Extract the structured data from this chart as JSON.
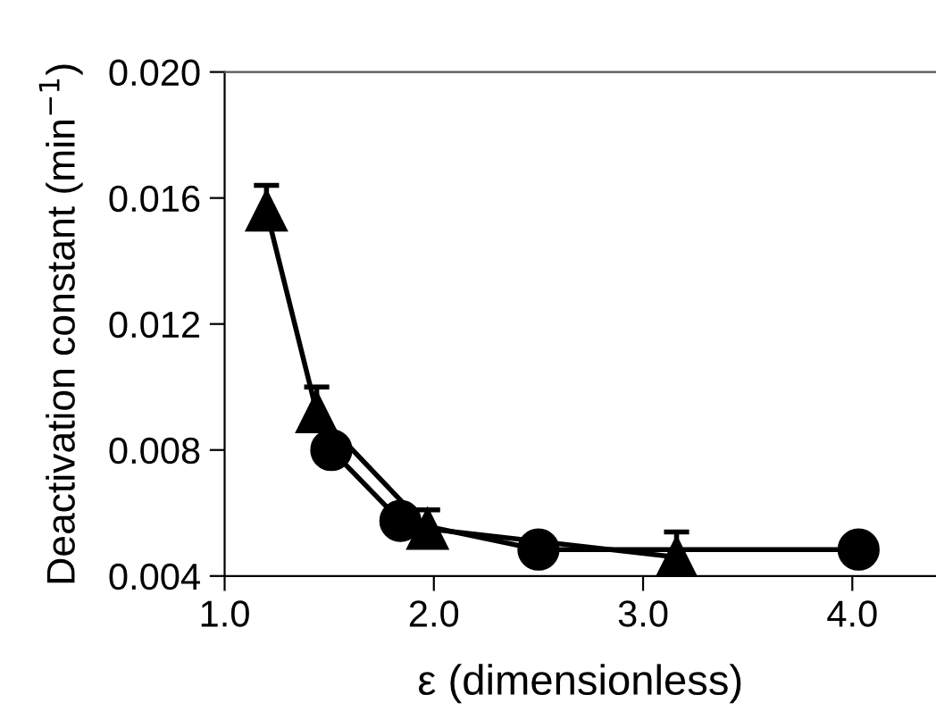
{
  "chart_data": {
    "type": "line",
    "xlabel": "ε (dimensionless)",
    "ylabel": "Deactivation constant (min$^{−1}$)",
    "xlim": [
      1.0,
      4.4
    ],
    "xticks": [
      {
        "value": 1,
        "label": "1.0"
      },
      {
        "value": 2,
        "label": "2.0"
      },
      {
        "value": 3,
        "label": "3.0"
      },
      {
        "value": 4,
        "label": "4.0"
      }
    ],
    "ylim": [
      0.004,
      0.02
    ],
    "yticks": [
      {
        "value": 0.004,
        "label": "0.004"
      },
      {
        "value": 0.008,
        "label": "0.008"
      },
      {
        "value": 0.012,
        "label": "0.012"
      },
      {
        "value": 0.016,
        "label": "0.016"
      },
      {
        "value": 0.02,
        "label": "0.020"
      }
    ],
    "grid": false,
    "line_style": "solid",
    "series": [
      {
        "color": "#000000",
        "marker": "circle",
        "x": [
          1.51,
          1.84,
          2.5,
          4.03
        ],
        "values": [
          0.008,
          0.00575,
          0.00484,
          0.00484
        ]
      },
      {
        "color": "#000000",
        "marker": "triangle",
        "x": [
          1.2,
          1.44,
          1.97,
          3.16
        ],
        "values": [
          0.0156,
          0.0092,
          0.0055,
          0.0046
        ],
        "errors": [
          [
            0.0156,
            0.0164
          ],
          [
            0.0092,
            0.01
          ],
          [
            0.0055,
            0.0061
          ],
          [
            0.0046,
            0.0054
          ]
        ]
      }
    ]
  }
}
